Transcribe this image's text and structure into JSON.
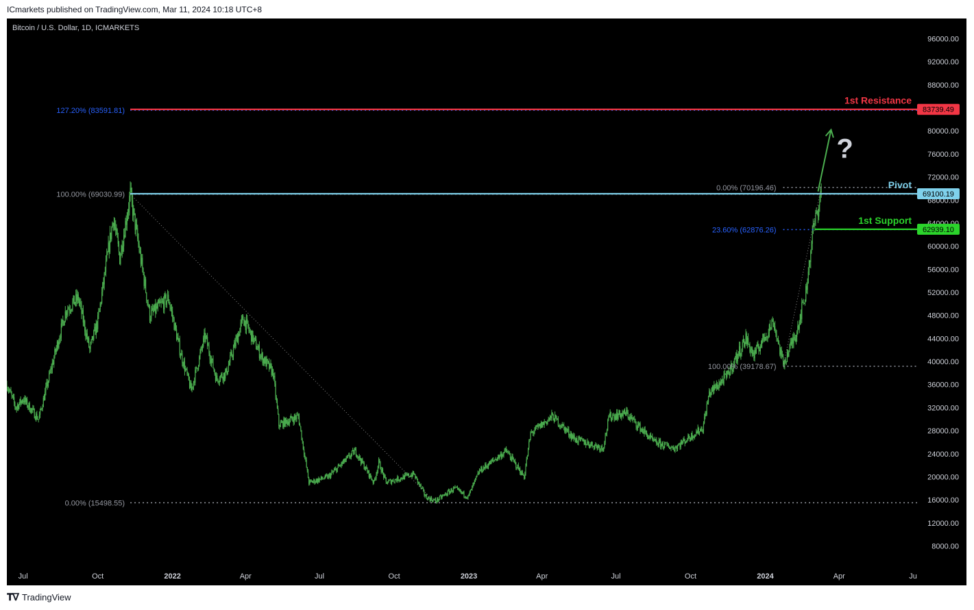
{
  "header": {
    "publisher": "ICmarkets published on TradingView.com, Mar 11, 2024 10:18 UTC+8"
  },
  "symbol": "Bitcoin / U.S. Dollar, 1D, ICMARKETS",
  "footer": {
    "brand": "TradingView",
    "logo": "tradingview-logo-icon"
  },
  "colors": {
    "background": "#000000",
    "candle": "#4caf50",
    "axis_text": "#d1d4dc",
    "fib_grey": "#9598a1",
    "fib_blue": "#2962ff",
    "resistance": "#f23645",
    "pivot": "#7fd1ec",
    "support": "#2bd42b",
    "arrow": "#4caf50"
  },
  "chart_data": {
    "type": "candlestick",
    "title": "Bitcoin / U.S. Dollar, 1D, ICMARKETS",
    "y_axis": {
      "position": "right",
      "range": [
        4500,
        99500
      ],
      "ticks": [
        "96000.00",
        "92000.00",
        "88000.00",
        "84000.00",
        "80000.00",
        "76000.00",
        "72000.00",
        "68000.00",
        "64000.00",
        "60000.00",
        "56000.00",
        "52000.00",
        "48000.00",
        "44000.00",
        "40000.00",
        "36000.00",
        "32000.00",
        "28000.00",
        "24000.00",
        "20000.00",
        "16000.00",
        "12000.00",
        "8000.00"
      ]
    },
    "x_axis": {
      "range": [
        "2021-06-11",
        "2024-07-06"
      ],
      "ticks": [
        {
          "label": "Jul",
          "date": "2021-07-01"
        },
        {
          "label": "Oct",
          "date": "2021-10-01"
        },
        {
          "label": "2022",
          "date": "2022-01-01",
          "bold": true
        },
        {
          "label": "Apr",
          "date": "2022-04-01"
        },
        {
          "label": "Jul",
          "date": "2022-07-01"
        },
        {
          "label": "Oct",
          "date": "2022-10-01"
        },
        {
          "label": "2023",
          "date": "2023-01-01",
          "bold": true
        },
        {
          "label": "Apr",
          "date": "2023-04-01"
        },
        {
          "label": "Jul",
          "date": "2023-07-01"
        },
        {
          "label": "Oct",
          "date": "2023-10-01"
        },
        {
          "label": "2024",
          "date": "2024-01-01",
          "bold": true
        },
        {
          "label": "Apr",
          "date": "2024-04-01"
        },
        {
          "label": "Ju",
          "date": "2024-07-01"
        }
      ]
    },
    "price_path": [
      [
        "2021-06-11",
        36000
      ],
      [
        "2021-06-22",
        32000
      ],
      [
        "2021-07-01",
        33500
      ],
      [
        "2021-07-20",
        30000
      ],
      [
        "2021-08-05",
        39000
      ],
      [
        "2021-08-23",
        49000
      ],
      [
        "2021-09-07",
        51000
      ],
      [
        "2021-09-21",
        42000
      ],
      [
        "2021-10-01",
        47000
      ],
      [
        "2021-10-20",
        65000
      ],
      [
        "2021-10-28",
        58000
      ],
      [
        "2021-11-10",
        69000
      ],
      [
        "2021-11-26",
        55000
      ],
      [
        "2021-12-04",
        48000
      ],
      [
        "2021-12-27",
        51000
      ],
      [
        "2022-01-10",
        42000
      ],
      [
        "2022-01-24",
        35000
      ],
      [
        "2022-02-10",
        44500
      ],
      [
        "2022-02-24",
        37000
      ],
      [
        "2022-03-08",
        38000
      ],
      [
        "2022-03-29",
        47500
      ],
      [
        "2022-04-20",
        41000
      ],
      [
        "2022-05-05",
        38000
      ],
      [
        "2022-05-12",
        29000
      ],
      [
        "2022-06-05",
        30500
      ],
      [
        "2022-06-18",
        19000
      ],
      [
        "2022-07-12",
        20000
      ],
      [
        "2022-08-14",
        24500
      ],
      [
        "2022-09-06",
        19000
      ],
      [
        "2022-09-12",
        22500
      ],
      [
        "2022-09-21",
        19000
      ],
      [
        "2022-10-25",
        20500
      ],
      [
        "2022-11-09",
        16500
      ],
      [
        "2022-11-21",
        15800
      ],
      [
        "2022-12-14",
        18000
      ],
      [
        "2022-12-31",
        16500
      ],
      [
        "2023-01-14",
        21000
      ],
      [
        "2023-02-16",
        24500
      ],
      [
        "2023-03-10",
        20000
      ],
      [
        "2023-03-18",
        27500
      ],
      [
        "2023-04-14",
        30500
      ],
      [
        "2023-05-12",
        26500
      ],
      [
        "2023-06-15",
        25000
      ],
      [
        "2023-06-23",
        30500
      ],
      [
        "2023-07-14",
        31000
      ],
      [
        "2023-08-17",
        26000
      ],
      [
        "2023-09-11",
        25000
      ],
      [
        "2023-10-16",
        28500
      ],
      [
        "2023-10-24",
        34500
      ],
      [
        "2023-11-15",
        37500
      ],
      [
        "2023-12-08",
        44000
      ],
      [
        "2023-12-18",
        41000
      ],
      [
        "2024-01-11",
        47000
      ],
      [
        "2024-01-23",
        39500
      ],
      [
        "2024-02-08",
        45000
      ],
      [
        "2024-02-20",
        52000
      ],
      [
        "2024-02-28",
        62000
      ],
      [
        "2024-03-05",
        66000
      ],
      [
        "2024-03-10",
        69500
      ]
    ],
    "drawn_lines": [
      {
        "name": "1st Resistance",
        "price_label": "83739.49",
        "value": 83739.49,
        "color": "#f23645"
      },
      {
        "name": "Pivot",
        "price_label": "69100.19",
        "value": 69100.19,
        "color": "#7fd1ec"
      },
      {
        "name": "1st Support",
        "price_label": "62939.10",
        "value": 62939.1,
        "color": "#2bd42b"
      }
    ],
    "fib_major": {
      "from": {
        "date": "2021-11-10",
        "price": 69030.99
      },
      "to": {
        "date": "2022-11-21",
        "price": 15498.55
      },
      "levels": [
        {
          "label": "127.20% (83591.81)",
          "value": 83591.81,
          "color": "#2962ff"
        },
        {
          "label": "100.00% (69030.99)",
          "value": 69030.99,
          "color": "#9598a1"
        },
        {
          "label": "0.00% (15498.55)",
          "value": 15498.55,
          "color": "#9598a1"
        }
      ]
    },
    "fib_minor": {
      "from": {
        "date": "2024-01-23",
        "price": 39178.67
      },
      "to": {
        "date": "2024-03-10",
        "price": 70196.46
      },
      "levels": [
        {
          "label": "0.00% (70196.46)",
          "value": 70196.46,
          "color": "#9598a1"
        },
        {
          "label": "23.60% (62876.26)",
          "value": 62876.26,
          "color": "#2962ff"
        },
        {
          "label": "100.00% (39178.67)",
          "value": 39178.67,
          "color": "#9598a1"
        }
      ]
    },
    "annotations": [
      {
        "type": "arrow",
        "from": {
          "date": "2024-03-06",
          "price": 69500
        },
        "to": {
          "date": "2024-03-22",
          "price": 80200
        }
      },
      {
        "type": "text",
        "text": "?",
        "date": "2024-04-08",
        "price": 77000
      }
    ]
  }
}
